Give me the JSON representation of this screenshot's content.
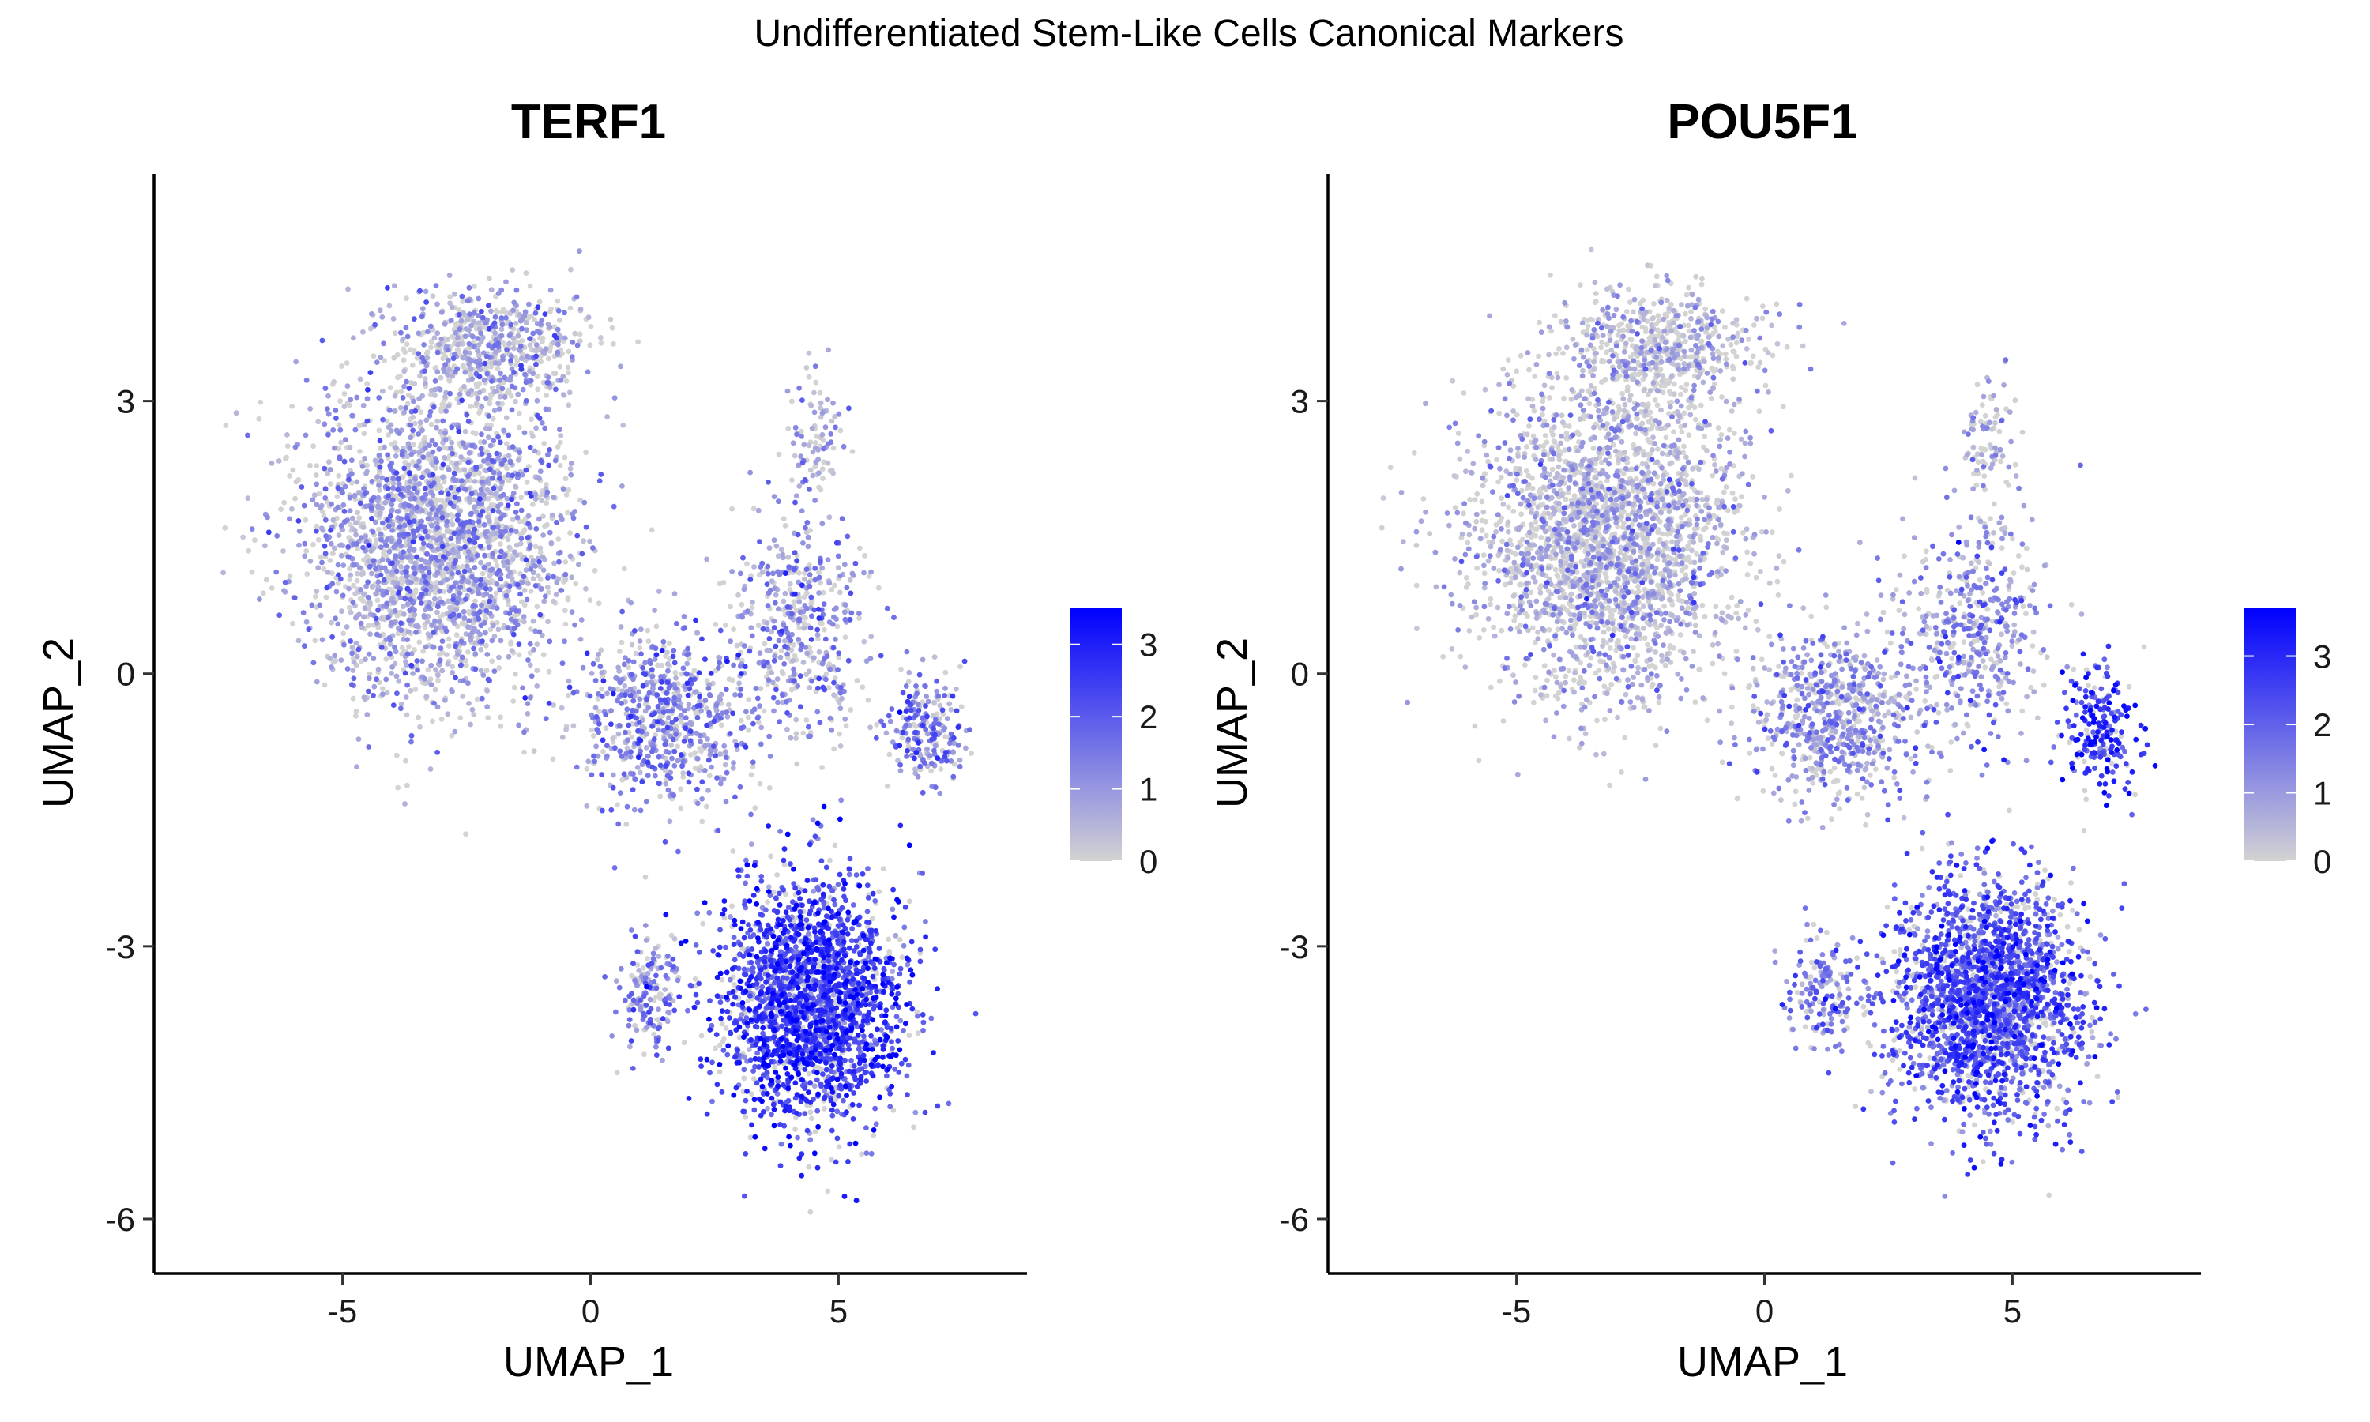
{
  "figure": {
    "title": "Undifferentiated Stem-Like Cells Canonical Markers"
  },
  "colors": {
    "low": "#D3D3D3",
    "high": "#0000FF"
  },
  "chart_data": [
    {
      "type": "scatter",
      "title": "TERF1",
      "xlabel": "UMAP_1",
      "ylabel": "UMAP_2",
      "xlim": [
        -8.8,
        8.8
      ],
      "ylim": [
        -6.6,
        5.5
      ],
      "xticks": [
        -5,
        0,
        5
      ],
      "xtick_labels": [
        "-5",
        "0",
        "5"
      ],
      "yticks": [
        -6,
        -3,
        0,
        3
      ],
      "ytick_labels": [
        "-6",
        "-3",
        "0",
        "3"
      ],
      "color_scale": {
        "min": 0,
        "max": 3.5,
        "ticks": [
          0,
          1,
          2,
          3
        ],
        "tick_labels": [
          "0",
          "1",
          "2",
          "3"
        ]
      },
      "grid": false,
      "legend": "right",
      "clusters": [
        {
          "region": "upper-left block",
          "center": [
            -3.2,
            1.5
          ],
          "spread": [
            2.4,
            1.6
          ],
          "n": 2600,
          "mean_expression": 0.7
        },
        {
          "region": "upper-left top lobe",
          "center": [
            -2.0,
            3.6
          ],
          "spread": [
            1.8,
            0.6
          ],
          "n": 550,
          "mean_expression": 0.6
        },
        {
          "region": "bridge",
          "center": [
            1.5,
            -0.5
          ],
          "spread": [
            1.6,
            0.9
          ],
          "n": 700,
          "mean_expression": 1.2
        },
        {
          "region": "mid-right cloud",
          "center": [
            4.2,
            0.5
          ],
          "spread": [
            1.3,
            1.2
          ],
          "n": 450,
          "mean_expression": 0.9
        },
        {
          "region": "upper-right arm",
          "center": [
            4.5,
            2.6
          ],
          "spread": [
            0.5,
            0.8
          ],
          "n": 90,
          "mean_expression": 0.5
        },
        {
          "region": "right lobe",
          "center": [
            6.8,
            -0.6
          ],
          "spread": [
            0.7,
            0.6
          ],
          "n": 220,
          "mean_expression": 1.4
        },
        {
          "region": "lower-right bulk",
          "center": [
            4.5,
            -3.6
          ],
          "spread": [
            1.7,
            1.2
          ],
          "n": 2200,
          "mean_expression": 2.4
        },
        {
          "region": "lower-left strand",
          "center": [
            1.2,
            -3.5
          ],
          "spread": [
            0.6,
            0.6
          ],
          "n": 160,
          "mean_expression": 1.3
        }
      ]
    },
    {
      "type": "scatter",
      "title": "POU5F1",
      "xlabel": "UMAP_1",
      "ylabel": "UMAP_2",
      "xlim": [
        -8.8,
        8.8
      ],
      "ylim": [
        -6.6,
        5.5
      ],
      "xticks": [
        -5,
        0,
        5
      ],
      "xtick_labels": [
        "-5",
        "0",
        "5"
      ],
      "yticks": [
        -6,
        -3,
        0,
        3
      ],
      "ytick_labels": [
        "-6",
        "-3",
        "0",
        "3"
      ],
      "color_scale": {
        "min": 0,
        "max": 3.7,
        "ticks": [
          0,
          1,
          2,
          3
        ],
        "tick_labels": [
          "0",
          "1",
          "2",
          "3"
        ]
      },
      "grid": false,
      "legend": "right",
      "clusters": [
        {
          "region": "upper-left block",
          "center": [
            -3.2,
            1.5
          ],
          "spread": [
            2.4,
            1.6
          ],
          "n": 2600,
          "mean_expression": 0.45
        },
        {
          "region": "upper-left top lobe",
          "center": [
            -2.0,
            3.6
          ],
          "spread": [
            1.8,
            0.6
          ],
          "n": 550,
          "mean_expression": 0.35
        },
        {
          "region": "bridge",
          "center": [
            1.5,
            -0.5
          ],
          "spread": [
            1.6,
            0.9
          ],
          "n": 700,
          "mean_expression": 1.0
        },
        {
          "region": "mid-right cloud",
          "center": [
            4.2,
            0.5
          ],
          "spread": [
            1.3,
            1.2
          ],
          "n": 450,
          "mean_expression": 1.1
        },
        {
          "region": "upper-right arm",
          "center": [
            4.5,
            2.6
          ],
          "spread": [
            0.5,
            0.8
          ],
          "n": 90,
          "mean_expression": 0.5
        },
        {
          "region": "right lobe",
          "center": [
            6.8,
            -0.6
          ],
          "spread": [
            0.7,
            0.6
          ],
          "n": 220,
          "mean_expression": 2.8
        },
        {
          "region": "lower-right bulk",
          "center": [
            4.5,
            -3.6
          ],
          "spread": [
            1.7,
            1.2
          ],
          "n": 2200,
          "mean_expression": 2.2
        },
        {
          "region": "lower-left strand",
          "center": [
            1.2,
            -3.5
          ],
          "spread": [
            0.6,
            0.6
          ],
          "n": 160,
          "mean_expression": 1.6
        }
      ]
    }
  ]
}
